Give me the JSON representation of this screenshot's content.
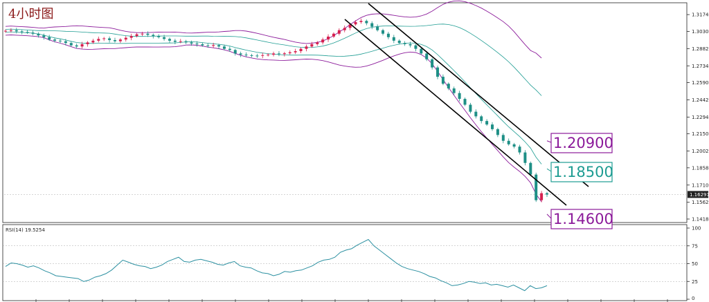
{
  "title": "4小时图",
  "colors": {
    "bull": "#d6204f",
    "bear": "#1e8f86",
    "envelope": "#8b1a9a",
    "mid_band": "#1d9c92",
    "rsi_line": "#2a8fa0",
    "channel": "#000000",
    "grid": "#d8d8d8"
  },
  "chart_data": [
    {
      "type": "candlestick",
      "panel": "price",
      "title": "4小时图",
      "ylim": [
        1.14,
        1.324
      ],
      "yticks": [
        "1.31740",
        "1.30300",
        "1.28820",
        "1.27340",
        "1.25900",
        "1.24420",
        "1.22940",
        "1.21500",
        "1.20020",
        "1.18580",
        "1.17100",
        "1.15620",
        "1.14180"
      ],
      "current_price": "1.16291",
      "overlays": [
        "bollinger upper/lower envelope",
        "moving average band",
        "descending price channel"
      ],
      "callouts": [
        {
          "label": "1.20900",
          "value": 1.209,
          "color": "#8b1a9a"
        },
        {
          "label": "1.18500",
          "value": 1.185,
          "color": "#1d9c92"
        },
        {
          "label": "1.14600",
          "value": 1.146,
          "color": "#8b1a9a"
        }
      ],
      "close_series": [
        1.3035,
        1.304,
        1.303,
        1.3025,
        1.302,
        1.301,
        1.2995,
        1.298,
        1.296,
        1.295,
        1.2945,
        1.293,
        1.291,
        1.29,
        1.292,
        1.2935,
        1.295,
        1.2965,
        1.297,
        1.2955,
        1.2945,
        1.296,
        1.2975,
        1.299,
        1.3005,
        1.301,
        1.3,
        1.299,
        1.298,
        1.2965,
        1.295,
        1.294,
        1.2945,
        1.2935,
        1.2925,
        1.292,
        1.291,
        1.2905,
        1.2912,
        1.29,
        1.288,
        1.287,
        1.284,
        1.283,
        1.2825,
        1.2822,
        1.282,
        1.2826,
        1.283,
        1.284,
        1.2835,
        1.2842,
        1.285,
        1.286,
        1.288,
        1.29,
        1.292,
        1.2935,
        1.296,
        1.2985,
        1.301,
        1.304,
        1.306,
        1.309,
        1.311,
        1.312,
        1.31,
        1.307,
        1.304,
        1.301,
        1.298,
        1.295,
        1.293,
        1.292,
        1.291,
        1.288,
        1.284,
        1.279,
        1.272,
        1.264,
        1.258,
        1.254,
        1.25,
        1.245,
        1.24,
        1.234,
        1.23,
        1.226,
        1.223,
        1.219,
        1.214,
        1.209,
        1.206,
        1.204,
        1.199,
        1.19,
        1.18,
        1.158,
        1.164,
        1.1629
      ]
    },
    {
      "type": "line",
      "panel": "indicator",
      "title": "RSI(14) 19.5254",
      "ylim": [
        0,
        100
      ],
      "yticks": [
        "100",
        "75",
        "50",
        "25",
        "0"
      ],
      "levels": [
        25,
        50,
        75
      ],
      "values": [
        46,
        51,
        50,
        48,
        45,
        47,
        44,
        40,
        37,
        33,
        32,
        31,
        30,
        29,
        25,
        27,
        31,
        33,
        36,
        41,
        48,
        55,
        52,
        49,
        47,
        46,
        43,
        45,
        48,
        53,
        56,
        59,
        53,
        52,
        55,
        56,
        54,
        52,
        49,
        48,
        51,
        53,
        47,
        45,
        44,
        40,
        37,
        36,
        33,
        35,
        39,
        38,
        40,
        41,
        44,
        47,
        52,
        55,
        56,
        59,
        66,
        69,
        71,
        76,
        80,
        84,
        75,
        69,
        63,
        57,
        51,
        46,
        43,
        41,
        39,
        36,
        32,
        30,
        26,
        23,
        19,
        20,
        22,
        25,
        24,
        22,
        23,
        20,
        21,
        19,
        17,
        20,
        16,
        12,
        19,
        15,
        16,
        19
      ]
    }
  ]
}
